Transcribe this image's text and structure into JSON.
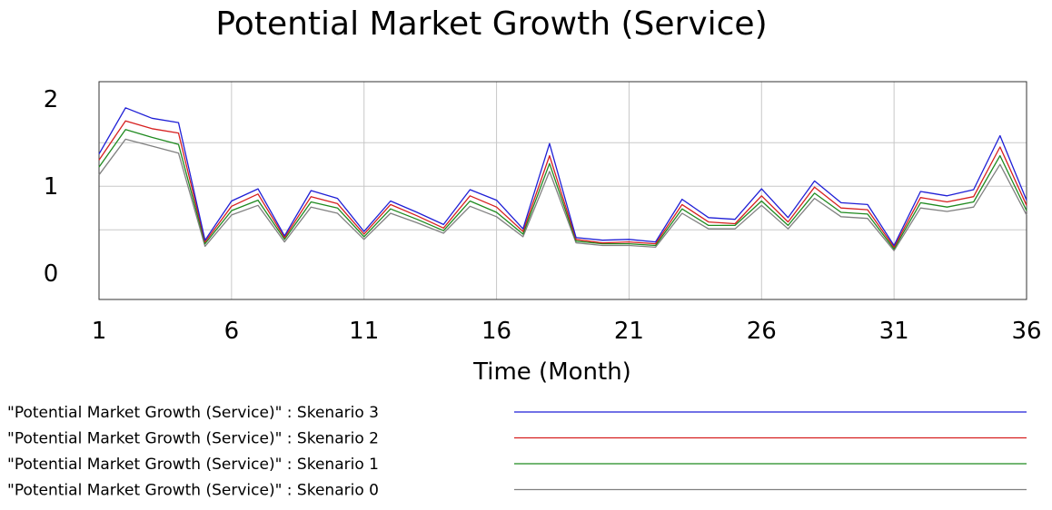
{
  "chart_data": {
    "type": "line",
    "title": "Potential Market Growth (Service)",
    "xlabel": "Time (Month)",
    "ylabel": "",
    "xlim": [
      1,
      36
    ],
    "ylim": [
      -0.3,
      2.2
    ],
    "x_ticks": [
      "1",
      "6",
      "11",
      "16",
      "21",
      "26",
      "31",
      "36"
    ],
    "y_ticks": [
      "2",
      "1",
      "0"
    ],
    "grid": true,
    "legend_position": "bottom",
    "x": [
      1,
      2,
      3,
      4,
      5,
      6,
      7,
      8,
      9,
      10,
      11,
      12,
      13,
      14,
      15,
      16,
      17,
      18,
      19,
      20,
      21,
      22,
      23,
      24,
      25,
      26,
      27,
      28,
      29,
      30,
      31,
      32,
      33,
      34,
      35,
      36
    ],
    "series": [
      {
        "name": "\"Potential Market Growth (Service)\" : Skenario 3",
        "color": "#1f1fd6",
        "values": [
          1.37,
          1.9,
          1.78,
          1.73,
          0.38,
          0.83,
          0.97,
          0.43,
          0.95,
          0.86,
          0.48,
          0.83,
          0.7,
          0.56,
          0.96,
          0.84,
          0.51,
          1.49,
          0.41,
          0.38,
          0.39,
          0.36,
          0.85,
          0.64,
          0.62,
          0.97,
          0.64,
          1.06,
          0.81,
          0.79,
          0.32,
          0.94,
          0.89,
          0.96,
          1.58,
          0.84
        ]
      },
      {
        "name": "\"Potential Market Growth (Service)\" : Skenario 2",
        "color": "#d61f1f",
        "values": [
          1.3,
          1.75,
          1.66,
          1.61,
          0.36,
          0.77,
          0.91,
          0.41,
          0.88,
          0.8,
          0.45,
          0.79,
          0.66,
          0.52,
          0.89,
          0.76,
          0.48,
          1.35,
          0.39,
          0.35,
          0.36,
          0.34,
          0.79,
          0.59,
          0.57,
          0.89,
          0.59,
          0.99,
          0.75,
          0.73,
          0.3,
          0.87,
          0.82,
          0.88,
          1.45,
          0.78
        ]
      },
      {
        "name": "\"Potential Market Growth (Service)\" : Skenario 1",
        "color": "#1f8a1f",
        "values": [
          1.22,
          1.65,
          1.56,
          1.48,
          0.34,
          0.72,
          0.84,
          0.39,
          0.82,
          0.75,
          0.42,
          0.74,
          0.62,
          0.49,
          0.83,
          0.7,
          0.45,
          1.26,
          0.37,
          0.34,
          0.34,
          0.32,
          0.74,
          0.55,
          0.55,
          0.83,
          0.55,
          0.92,
          0.7,
          0.68,
          0.28,
          0.81,
          0.76,
          0.82,
          1.35,
          0.72
        ]
      },
      {
        "name": "\"Potential Market Growth (Service)\" : Skenario 0",
        "color": "#808080",
        "values": [
          1.13,
          1.54,
          1.46,
          1.38,
          0.31,
          0.67,
          0.78,
          0.36,
          0.76,
          0.69,
          0.39,
          0.69,
          0.58,
          0.46,
          0.77,
          0.65,
          0.42,
          1.17,
          0.35,
          0.32,
          0.32,
          0.3,
          0.69,
          0.51,
          0.51,
          0.78,
          0.51,
          0.86,
          0.65,
          0.63,
          0.26,
          0.75,
          0.71,
          0.76,
          1.25,
          0.67
        ]
      }
    ]
  }
}
